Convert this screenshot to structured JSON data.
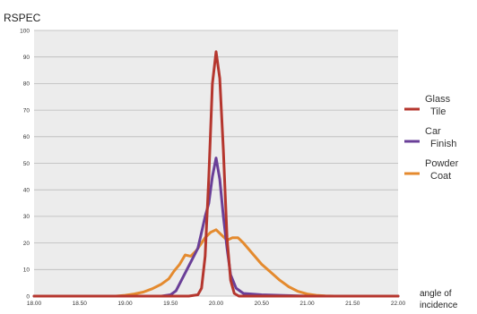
{
  "chart_data": {
    "type": "line",
    "title": "",
    "ylabel": "RSPEC",
    "xlabel": "angle of incidence",
    "xlim": [
      18.0,
      22.0
    ],
    "ylim": [
      0,
      100
    ],
    "xticks": [
      "18.00",
      "18.50",
      "19.00",
      "19.50",
      "20.00",
      "20.50",
      "21.00",
      "21.50",
      "22.00"
    ],
    "yticks": [
      "0",
      "10",
      "20",
      "30",
      "40",
      "50",
      "60",
      "70",
      "80",
      "90",
      "100"
    ],
    "grid": "horizontal",
    "legend_position": "right",
    "series": [
      {
        "name": "Glass Tile",
        "color": "#b5362e",
        "points": [
          [
            18.0,
            0
          ],
          [
            19.7,
            0
          ],
          [
            19.8,
            0.5
          ],
          [
            19.84,
            3
          ],
          [
            19.88,
            15
          ],
          [
            19.92,
            45
          ],
          [
            19.96,
            80
          ],
          [
            20.0,
            92
          ],
          [
            20.04,
            82
          ],
          [
            20.08,
            55
          ],
          [
            20.12,
            22
          ],
          [
            20.16,
            6
          ],
          [
            20.2,
            1
          ],
          [
            20.25,
            0
          ],
          [
            22.0,
            0
          ]
        ]
      },
      {
        "name": "Car Finish",
        "color": "#6a3f98",
        "points": [
          [
            18.0,
            0
          ],
          [
            19.4,
            0
          ],
          [
            19.5,
            0.5
          ],
          [
            19.56,
            2
          ],
          [
            19.62,
            6
          ],
          [
            19.68,
            10
          ],
          [
            19.74,
            14
          ],
          [
            19.8,
            18
          ],
          [
            19.84,
            24
          ],
          [
            19.88,
            30
          ],
          [
            19.92,
            35
          ],
          [
            19.96,
            45
          ],
          [
            20.0,
            52
          ],
          [
            20.04,
            44
          ],
          [
            20.08,
            30
          ],
          [
            20.12,
            18
          ],
          [
            20.16,
            8
          ],
          [
            20.22,
            3
          ],
          [
            20.3,
            1
          ],
          [
            20.5,
            0.5
          ],
          [
            20.7,
            0.3
          ],
          [
            21.0,
            0
          ],
          [
            22.0,
            0
          ]
        ]
      },
      {
        "name": "Powder Coat",
        "color": "#e48a2e",
        "points": [
          [
            18.0,
            0
          ],
          [
            18.9,
            0
          ],
          [
            19.0,
            0.3
          ],
          [
            19.1,
            0.8
          ],
          [
            19.2,
            1.5
          ],
          [
            19.3,
            2.8
          ],
          [
            19.4,
            4.5
          ],
          [
            19.48,
            6.5
          ],
          [
            19.54,
            9.5
          ],
          [
            19.6,
            12
          ],
          [
            19.66,
            15.5
          ],
          [
            19.72,
            15
          ],
          [
            19.78,
            17
          ],
          [
            19.84,
            20
          ],
          [
            19.88,
            22
          ],
          [
            19.94,
            24
          ],
          [
            20.0,
            25
          ],
          [
            20.06,
            23
          ],
          [
            20.12,
            21
          ],
          [
            20.18,
            22
          ],
          [
            20.24,
            22
          ],
          [
            20.3,
            20
          ],
          [
            20.4,
            16
          ],
          [
            20.5,
            12
          ],
          [
            20.6,
            9
          ],
          [
            20.7,
            6
          ],
          [
            20.8,
            3.5
          ],
          [
            20.9,
            1.8
          ],
          [
            21.0,
            0.8
          ],
          [
            21.1,
            0.3
          ],
          [
            21.2,
            0.1
          ],
          [
            21.3,
            0
          ],
          [
            22.0,
            0
          ]
        ]
      }
    ]
  }
}
